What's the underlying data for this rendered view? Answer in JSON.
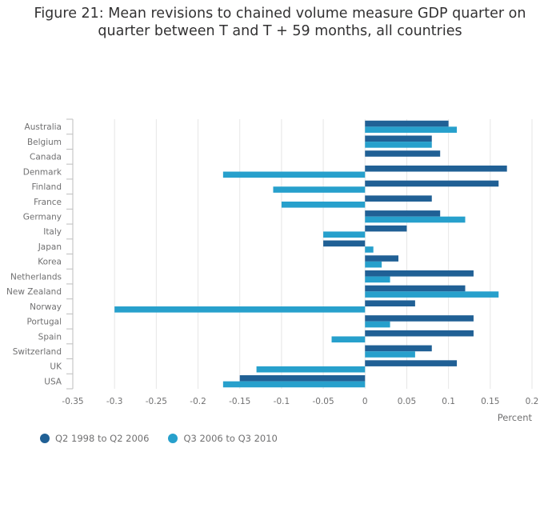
{
  "chart_data": {
    "type": "bar",
    "orientation": "horizontal",
    "title_lines": [
      "Figure 21: Mean revisions to chained volume measure GDP quarter on",
      "quarter between T and T + 59 months, all countries"
    ],
    "xlabel": "Percent",
    "xlim": [
      -0.35,
      0.2
    ],
    "xticks": [
      -0.35,
      -0.3,
      -0.25,
      -0.2,
      -0.15,
      -0.1,
      -0.05,
      0,
      0.05,
      0.1,
      0.15,
      0.2
    ],
    "grid": "vertical",
    "legend_position": "bottom-left",
    "categories": [
      "Australia",
      "Belgium",
      "Canada",
      "Denmark",
      "Finland",
      "France",
      "Germany",
      "Italy",
      "Japan",
      "Korea",
      "Netherlands",
      "New Zealand",
      "Norway",
      "Portugal",
      "Spain",
      "Switzerland",
      "UK",
      "USA"
    ],
    "series": [
      {
        "name": "Q2 1998 to Q2 2006",
        "color": "#206095",
        "values": [
          0.1,
          0.08,
          0.09,
          0.17,
          0.16,
          0.08,
          0.09,
          0.05,
          -0.05,
          0.04,
          0.13,
          0.12,
          0.06,
          0.13,
          0.13,
          0.08,
          0.11,
          -0.15
        ]
      },
      {
        "name": "Q3 2006 to Q3 2010",
        "color": "#27a0cc",
        "values": [
          0.11,
          0.08,
          0.0,
          -0.17,
          -0.11,
          -0.1,
          0.12,
          -0.05,
          0.01,
          0.02,
          0.03,
          0.16,
          -0.3,
          0.03,
          -0.04,
          0.06,
          -0.13,
          -0.17
        ]
      }
    ]
  }
}
